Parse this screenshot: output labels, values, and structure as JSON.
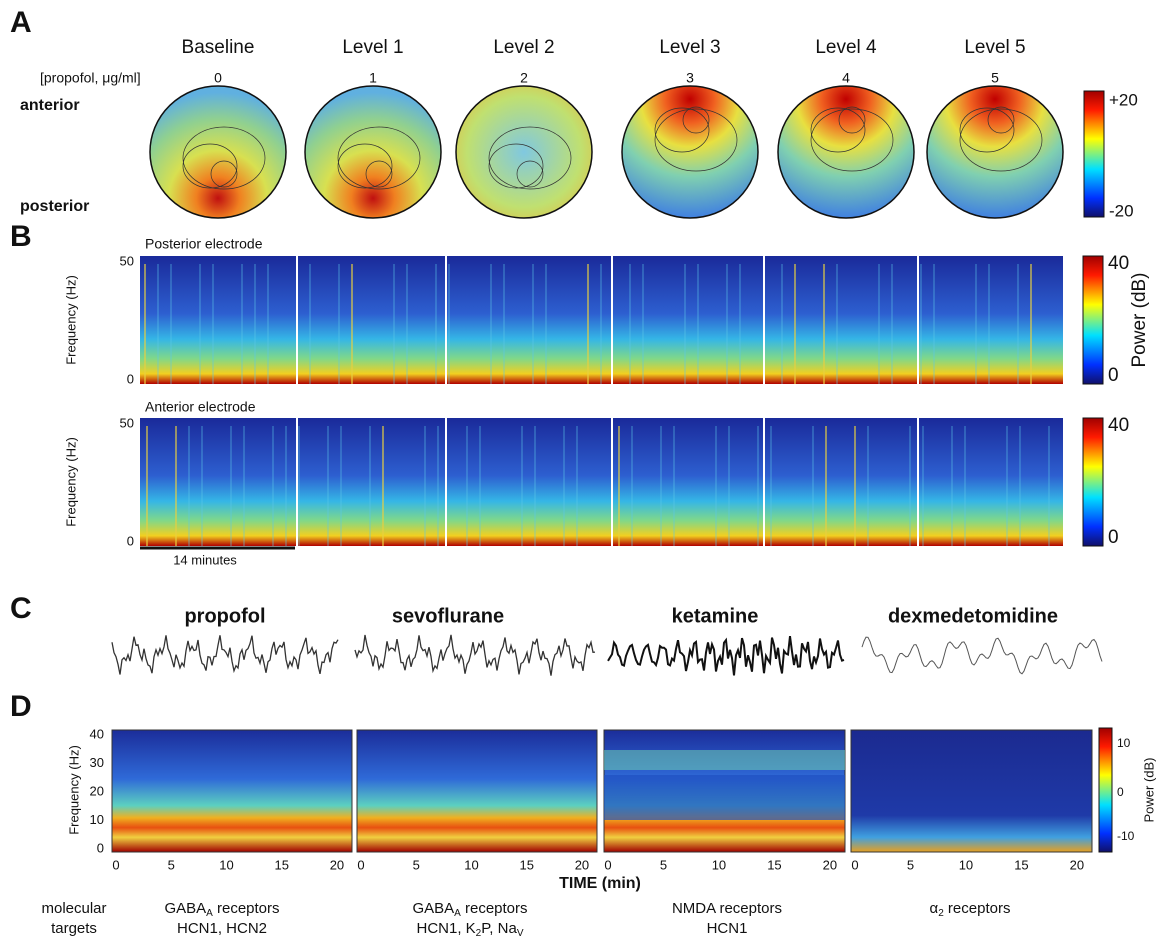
{
  "panel_a": {
    "label": "A",
    "levels": [
      "Baseline",
      "Level 1",
      "Level 2",
      "Level 3",
      "Level 4",
      "Level 5"
    ],
    "dose_label": "[propofol, μg/ml]",
    "doses": [
      0,
      1,
      2,
      3,
      4,
      5
    ],
    "anterior": "anterior",
    "posterior": "posterior",
    "colorbar": [
      "+20",
      "-20"
    ]
  },
  "panel_b": {
    "label": "B",
    "posterior_title": "Posterior electrode",
    "anterior_title": "Anterior electrode",
    "y_label": "Frequency (Hz)",
    "y_ticks": [
      50,
      0
    ],
    "colorbar": [
      40,
      0
    ],
    "colorbar_label": "Power (dB)",
    "scale_bar": "14 minutes"
  },
  "panel_c": {
    "label": "C",
    "drugs": [
      "propofol",
      "sevoflurane",
      "ketamine",
      "dexmedetomidine"
    ]
  },
  "panel_d": {
    "label": "D",
    "y_label": "Frequency (Hz)",
    "y_ticks": [
      40,
      30,
      20,
      10,
      0
    ],
    "x_ticks": [
      0,
      5,
      10,
      15,
      20
    ],
    "x_label": "TIME (min)",
    "colorbar": [
      10,
      0,
      -10
    ],
    "colorbar_label": "Power (dB)",
    "targets_label": [
      "molecular",
      "targets"
    ],
    "targets": [
      [
        [
          "GABA",
          "A",
          " receptors"
        ],
        [
          "HCN1, HCN2"
        ]
      ],
      [
        [
          "GABA",
          "A",
          " receptors"
        ],
        [
          "HCN1, K",
          "2",
          "P, Na",
          "V"
        ]
      ],
      [
        [
          "NMDA receptors"
        ],
        [
          "HCN1"
        ]
      ],
      [
        [
          "α",
          "2",
          " receptors"
        ]
      ]
    ]
  }
}
